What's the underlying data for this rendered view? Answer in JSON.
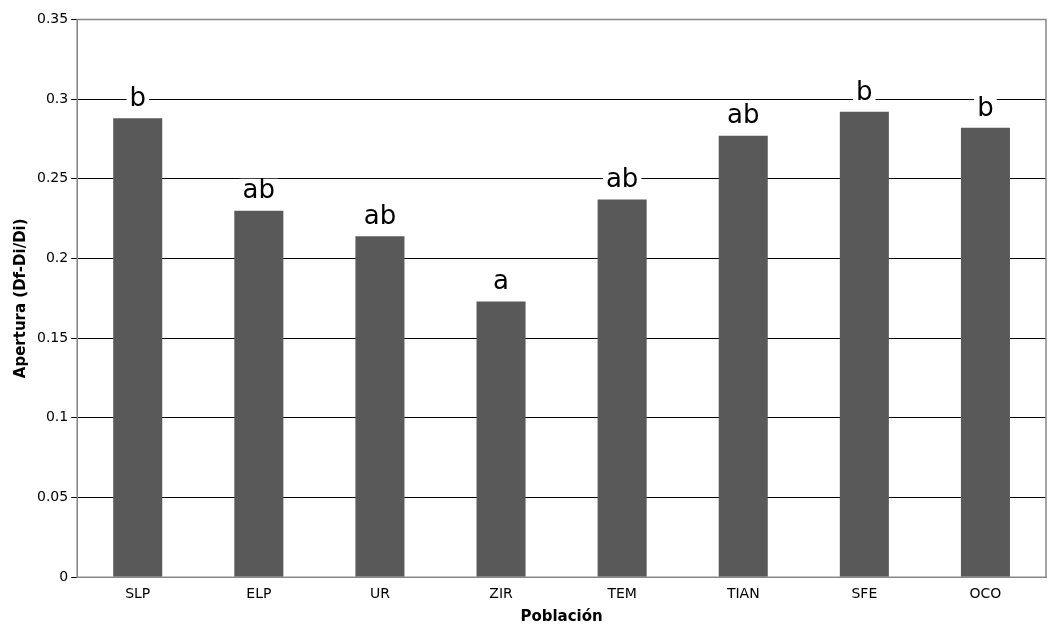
{
  "chart_data": {
    "type": "bar",
    "xlabel": "Población",
    "ylabel": "Apertura (Df-Di/Di)",
    "categories": [
      "SLP",
      "ELP",
      "UR",
      "ZIR",
      "TEM",
      "TIAN",
      "SFE",
      "OCO"
    ],
    "values": [
      0.288,
      0.23,
      0.214,
      0.173,
      0.237,
      0.277,
      0.292,
      0.282
    ],
    "color": "#595959",
    "ylim": [
      0,
      0.35
    ],
    "yticks": [
      0,
      0.05,
      0.1,
      0.15,
      0.2,
      0.25,
      0.3,
      0.35
    ],
    "grid": "y",
    "legend": false,
    "annotations": [
      "b",
      "ab",
      "ab",
      "a",
      "ab",
      "ab",
      "b",
      "b"
    ]
  }
}
